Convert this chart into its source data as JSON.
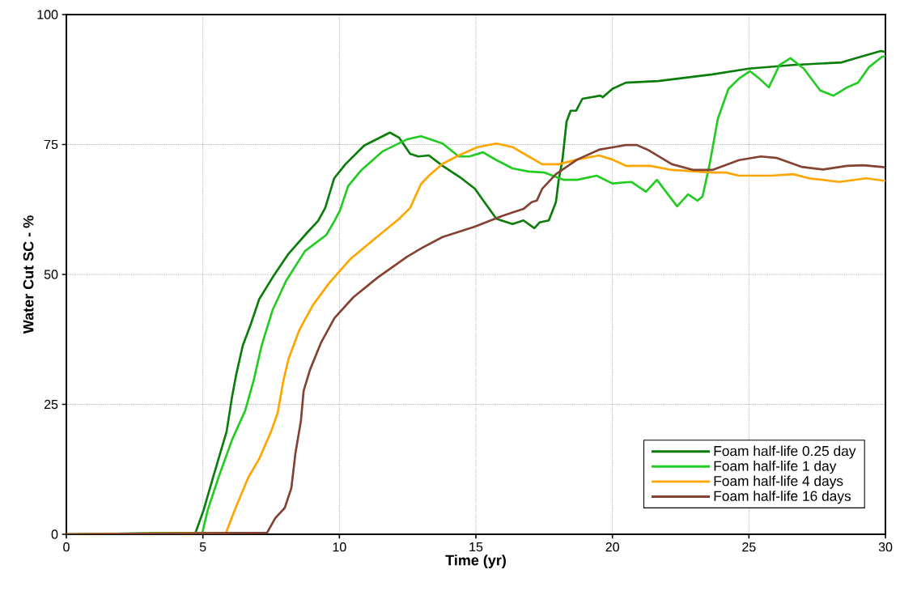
{
  "chart_data": {
    "type": "line",
    "xlabel": "Time (yr)",
    "ylabel": "Water Cut SC - %",
    "xlim": [
      0,
      30
    ],
    "ylim": [
      0,
      100
    ],
    "xticks": [
      0,
      5,
      10,
      15,
      20,
      25,
      30
    ],
    "yticks": [
      0,
      25,
      50,
      75,
      100
    ],
    "grid": true,
    "legend": "bottom right",
    "line_style": "solid",
    "marker": "none",
    "series": [
      {
        "name": "Foam half-life 0.25 day",
        "color": "#0a7d0a",
        "x": [
          0,
          4.73,
          5.03,
          5.37,
          5.87,
          6.07,
          6.22,
          6.46,
          6.76,
          7.06,
          7.55,
          8.14,
          8.83,
          9.22,
          9.48,
          9.81,
          10.22,
          10.91,
          11.85,
          12.19,
          12.59,
          12.89,
          13.28,
          13.78,
          14.47,
          14.96,
          15.26,
          15.75,
          16.34,
          16.74,
          17.14,
          17.33,
          17.67,
          17.93,
          18.03,
          18.17,
          18.32,
          18.47,
          18.67,
          18.9,
          19.56,
          19.65,
          20.0,
          20.49,
          21.68,
          23.66,
          25.0,
          26.62,
          28.4,
          28.9,
          29.83,
          30
        ],
        "values": [
          0,
          0.3,
          4.7,
          10.9,
          19.8,
          26.5,
          30.7,
          36.3,
          40.5,
          45.2,
          49.4,
          54.0,
          58.1,
          60.3,
          62.8,
          68.5,
          71.2,
          74.8,
          77.3,
          76.3,
          73.2,
          72.7,
          72.9,
          70.9,
          68.5,
          66.5,
          64.3,
          60.7,
          59.7,
          60.4,
          58.9,
          60.0,
          60.4,
          63.9,
          68.1,
          72.1,
          79.4,
          81.5,
          81.5,
          83.8,
          84.4,
          84.1,
          85.7,
          86.9,
          87.2,
          88.5,
          89.6,
          90.3,
          90.8,
          91.6,
          93.0,
          92.8
        ]
      },
      {
        "name": "Foam half-life 1 day",
        "color": "#22cc22",
        "x": [
          0,
          4.98,
          5.18,
          5.57,
          6.07,
          6.55,
          6.86,
          7.15,
          7.55,
          8.05,
          8.74,
          9.52,
          9.82,
          10.02,
          10.32,
          10.81,
          11.59,
          12.48,
          12.99,
          13.78,
          14.37,
          14.76,
          15.26,
          15.75,
          16.34,
          16.93,
          17.52,
          18.22,
          18.71,
          19.42,
          20.0,
          20.69,
          21.23,
          21.63,
          22.37,
          22.77,
          23.12,
          23.3,
          23.56,
          23.86,
          24.25,
          24.64,
          25.04,
          25.38,
          25.73,
          26.12,
          26.52,
          27.01,
          27.61,
          28.1,
          28.6,
          29.0,
          29.4,
          29.88,
          30
        ],
        "values": [
          0,
          0.3,
          4.7,
          10.9,
          18.2,
          23.8,
          29.6,
          36.3,
          43.1,
          48.8,
          54.5,
          57.6,
          60.3,
          62.3,
          67.0,
          70.1,
          73.7,
          76.0,
          76.6,
          75.2,
          72.7,
          72.7,
          73.5,
          72.0,
          70.4,
          69.8,
          69.6,
          68.2,
          68.2,
          69.0,
          67.5,
          67.8,
          65.9,
          68.2,
          63.1,
          65.4,
          64.2,
          65.0,
          71.2,
          79.9,
          85.7,
          87.7,
          89.1,
          87.7,
          86.0,
          90.3,
          91.6,
          89.6,
          85.4,
          84.4,
          86.0,
          86.9,
          89.9,
          91.9,
          92.0
        ]
      },
      {
        "name": "Foam half-life 4 days",
        "color": "#ffa500",
        "x": [
          0,
          5.85,
          6.17,
          6.66,
          7.06,
          7.5,
          7.74,
          7.95,
          8.14,
          8.54,
          9.03,
          9.62,
          10.41,
          11.21,
          12.19,
          12.59,
          12.99,
          13.28,
          13.78,
          14.37,
          15.06,
          15.75,
          16.34,
          16.93,
          17.43,
          18.03,
          18.71,
          19.51,
          20.0,
          20.49,
          21.38,
          22.18,
          23.66,
          24.15,
          24.64,
          25.83,
          26.62,
          27.2,
          28.3,
          29.3,
          29.83,
          30
        ],
        "values": [
          0,
          0.3,
          4.7,
          10.9,
          14.5,
          19.8,
          23.4,
          29.6,
          33.8,
          39.4,
          44.1,
          48.3,
          53.0,
          56.5,
          60.7,
          62.8,
          67.4,
          69.0,
          71.3,
          72.9,
          74.5,
          75.2,
          74.5,
          72.7,
          71.2,
          71.2,
          72.1,
          72.9,
          72.1,
          70.9,
          70.9,
          70.1,
          69.6,
          69.6,
          69.0,
          69.0,
          69.3,
          68.5,
          67.8,
          68.5,
          68.1,
          68.0
        ]
      },
      {
        "name": "Foam half-life 16 days",
        "color": "#844232",
        "x": [
          0,
          7.35,
          7.65,
          8.0,
          8.24,
          8.39,
          8.59,
          8.69,
          8.92,
          9.33,
          9.82,
          10.51,
          11.4,
          12.48,
          12.99,
          13.78,
          14.96,
          15.94,
          16.74,
          17.04,
          17.23,
          17.43,
          17.93,
          18.71,
          19.51,
          20.49,
          20.89,
          21.29,
          22.18,
          22.97,
          23.66,
          24.64,
          25.44,
          26.03,
          26.92,
          27.71,
          28.6,
          29.19,
          29.83,
          30
        ],
        "values": [
          0,
          0.3,
          3.1,
          5.1,
          8.9,
          15.6,
          21.8,
          27.6,
          31.6,
          36.9,
          41.6,
          45.6,
          49.4,
          53.4,
          55.0,
          57.2,
          59.2,
          61.2,
          62.6,
          63.9,
          64.2,
          66.5,
          69.3,
          72.1,
          74.0,
          74.9,
          74.9,
          74.0,
          71.2,
          70.1,
          70.1,
          72.0,
          72.7,
          72.4,
          70.7,
          70.2,
          70.9,
          71.0,
          70.7,
          70.6
        ]
      }
    ]
  }
}
